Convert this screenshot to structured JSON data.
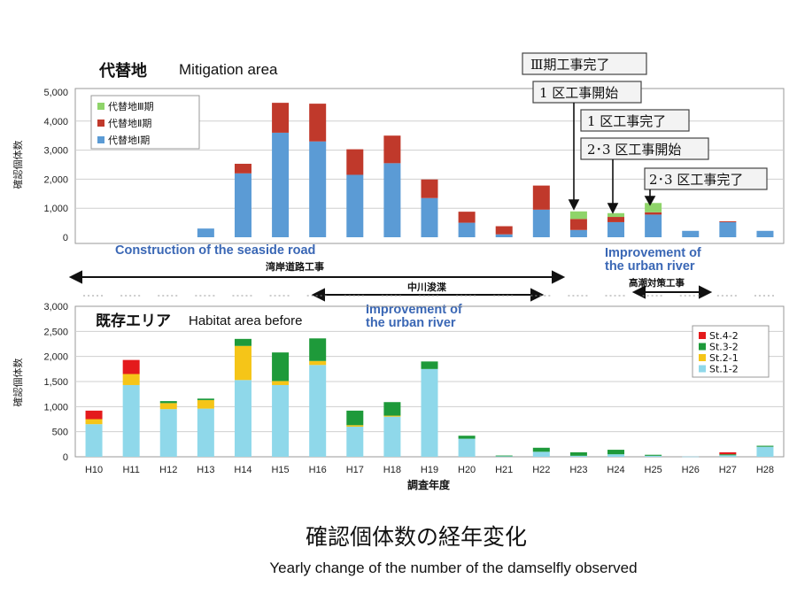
{
  "colors": {
    "mit_phase1": "#5b9bd5",
    "mit_phase2": "#c0392b",
    "mit_phase3": "#8fd46a",
    "st12": "#8fd8ea",
    "st21": "#f5c518",
    "st32": "#1e9a3a",
    "st42": "#e41a1c",
    "annotation_blue": "#3a67b5"
  },
  "top": {
    "title_jp": "代替地",
    "title_en": "Mitigation area"
  },
  "bottom": {
    "title_jp": "既存エリア",
    "title_en": "Habitat area before"
  },
  "annotations": {
    "seaside_en": "Construction of the seaside road",
    "seaside_jp": "湾岸道路工事",
    "nakagawa_jp": "中川浚渫",
    "nakagawa_en_1": "Improvement of",
    "nakagawa_en_2": "the urban river",
    "takashio_jp": "高潮対策工事",
    "takashio_en_1": "Improvement of",
    "takashio_en_2": "the urban river",
    "box1": "Ⅲ期工事完了",
    "box2": "1 区工事開始",
    "box3": "1 区工事完了",
    "box4": "2･3 区工事開始",
    "box5": "2･3 区工事完了"
  },
  "footer": {
    "title_jp": "確認個体数の経年変化",
    "title_en": "Yearly change of the number of the damselfly observed"
  },
  "chart_data": [
    {
      "type": "bar",
      "stacked": true,
      "categories": [
        "H10",
        "H11",
        "H12",
        "H13",
        "H14",
        "H15",
        "H16",
        "H17",
        "H18",
        "H19",
        "H20",
        "H21",
        "H22",
        "H23",
        "H24",
        "H25",
        "H26",
        "H27",
        "H28"
      ],
      "ylabel": "確認個体数",
      "ylim": [
        0,
        5000
      ],
      "yticks": [
        "0",
        "1,000",
        "2,000",
        "3,000",
        "4,000",
        "5,000"
      ],
      "legend_position": "top-left",
      "series": [
        {
          "name": "代替地Ⅰ期",
          "values": [
            0,
            0,
            0,
            300,
            2200,
            3600,
            3300,
            2150,
            2550,
            1350,
            500,
            100,
            950,
            250,
            520,
            780,
            220,
            520,
            220
          ]
        },
        {
          "name": "代替地Ⅱ期",
          "values": [
            0,
            0,
            0,
            0,
            330,
            1030,
            1300,
            880,
            950,
            640,
            380,
            280,
            830,
            380,
            180,
            80,
            0,
            30,
            0
          ]
        },
        {
          "name": "代替地Ⅲ期",
          "values": [
            0,
            0,
            0,
            0,
            0,
            0,
            0,
            0,
            0,
            0,
            0,
            0,
            0,
            260,
            130,
            320,
            0,
            0,
            0
          ]
        }
      ]
    },
    {
      "type": "bar",
      "stacked": true,
      "categories": [
        "H10",
        "H11",
        "H12",
        "H13",
        "H14",
        "H15",
        "H16",
        "H17",
        "H18",
        "H19",
        "H20",
        "H21",
        "H22",
        "H23",
        "H24",
        "H25",
        "H26",
        "H27",
        "H28"
      ],
      "xlabel": "調査年度",
      "ylabel": "確認個体数",
      "ylim": [
        0,
        3000
      ],
      "yticks": [
        "0",
        "500",
        "1,000",
        "1,500",
        "2,000",
        "2,500",
        "3,000"
      ],
      "legend_position": "top-right",
      "series": [
        {
          "name": "St.1-2",
          "values": [
            650,
            1430,
            950,
            960,
            1530,
            1430,
            1830,
            600,
            800,
            1750,
            360,
            10,
            100,
            20,
            50,
            20,
            5,
            30,
            200
          ]
        },
        {
          "name": "St.2-1",
          "values": [
            100,
            220,
            120,
            170,
            680,
            80,
            80,
            30,
            20,
            0,
            0,
            0,
            0,
            0,
            0,
            0,
            0,
            0,
            0
          ]
        },
        {
          "name": "St.3-2",
          "values": [
            0,
            0,
            40,
            30,
            140,
            570,
            450,
            290,
            270,
            150,
            60,
            15,
            80,
            70,
            90,
            20,
            0,
            20,
            20
          ]
        },
        {
          "name": "St.4-2",
          "values": [
            170,
            280,
            0,
            0,
            0,
            0,
            0,
            0,
            0,
            0,
            0,
            0,
            0,
            0,
            0,
            0,
            0,
            40,
            0
          ]
        }
      ]
    }
  ]
}
